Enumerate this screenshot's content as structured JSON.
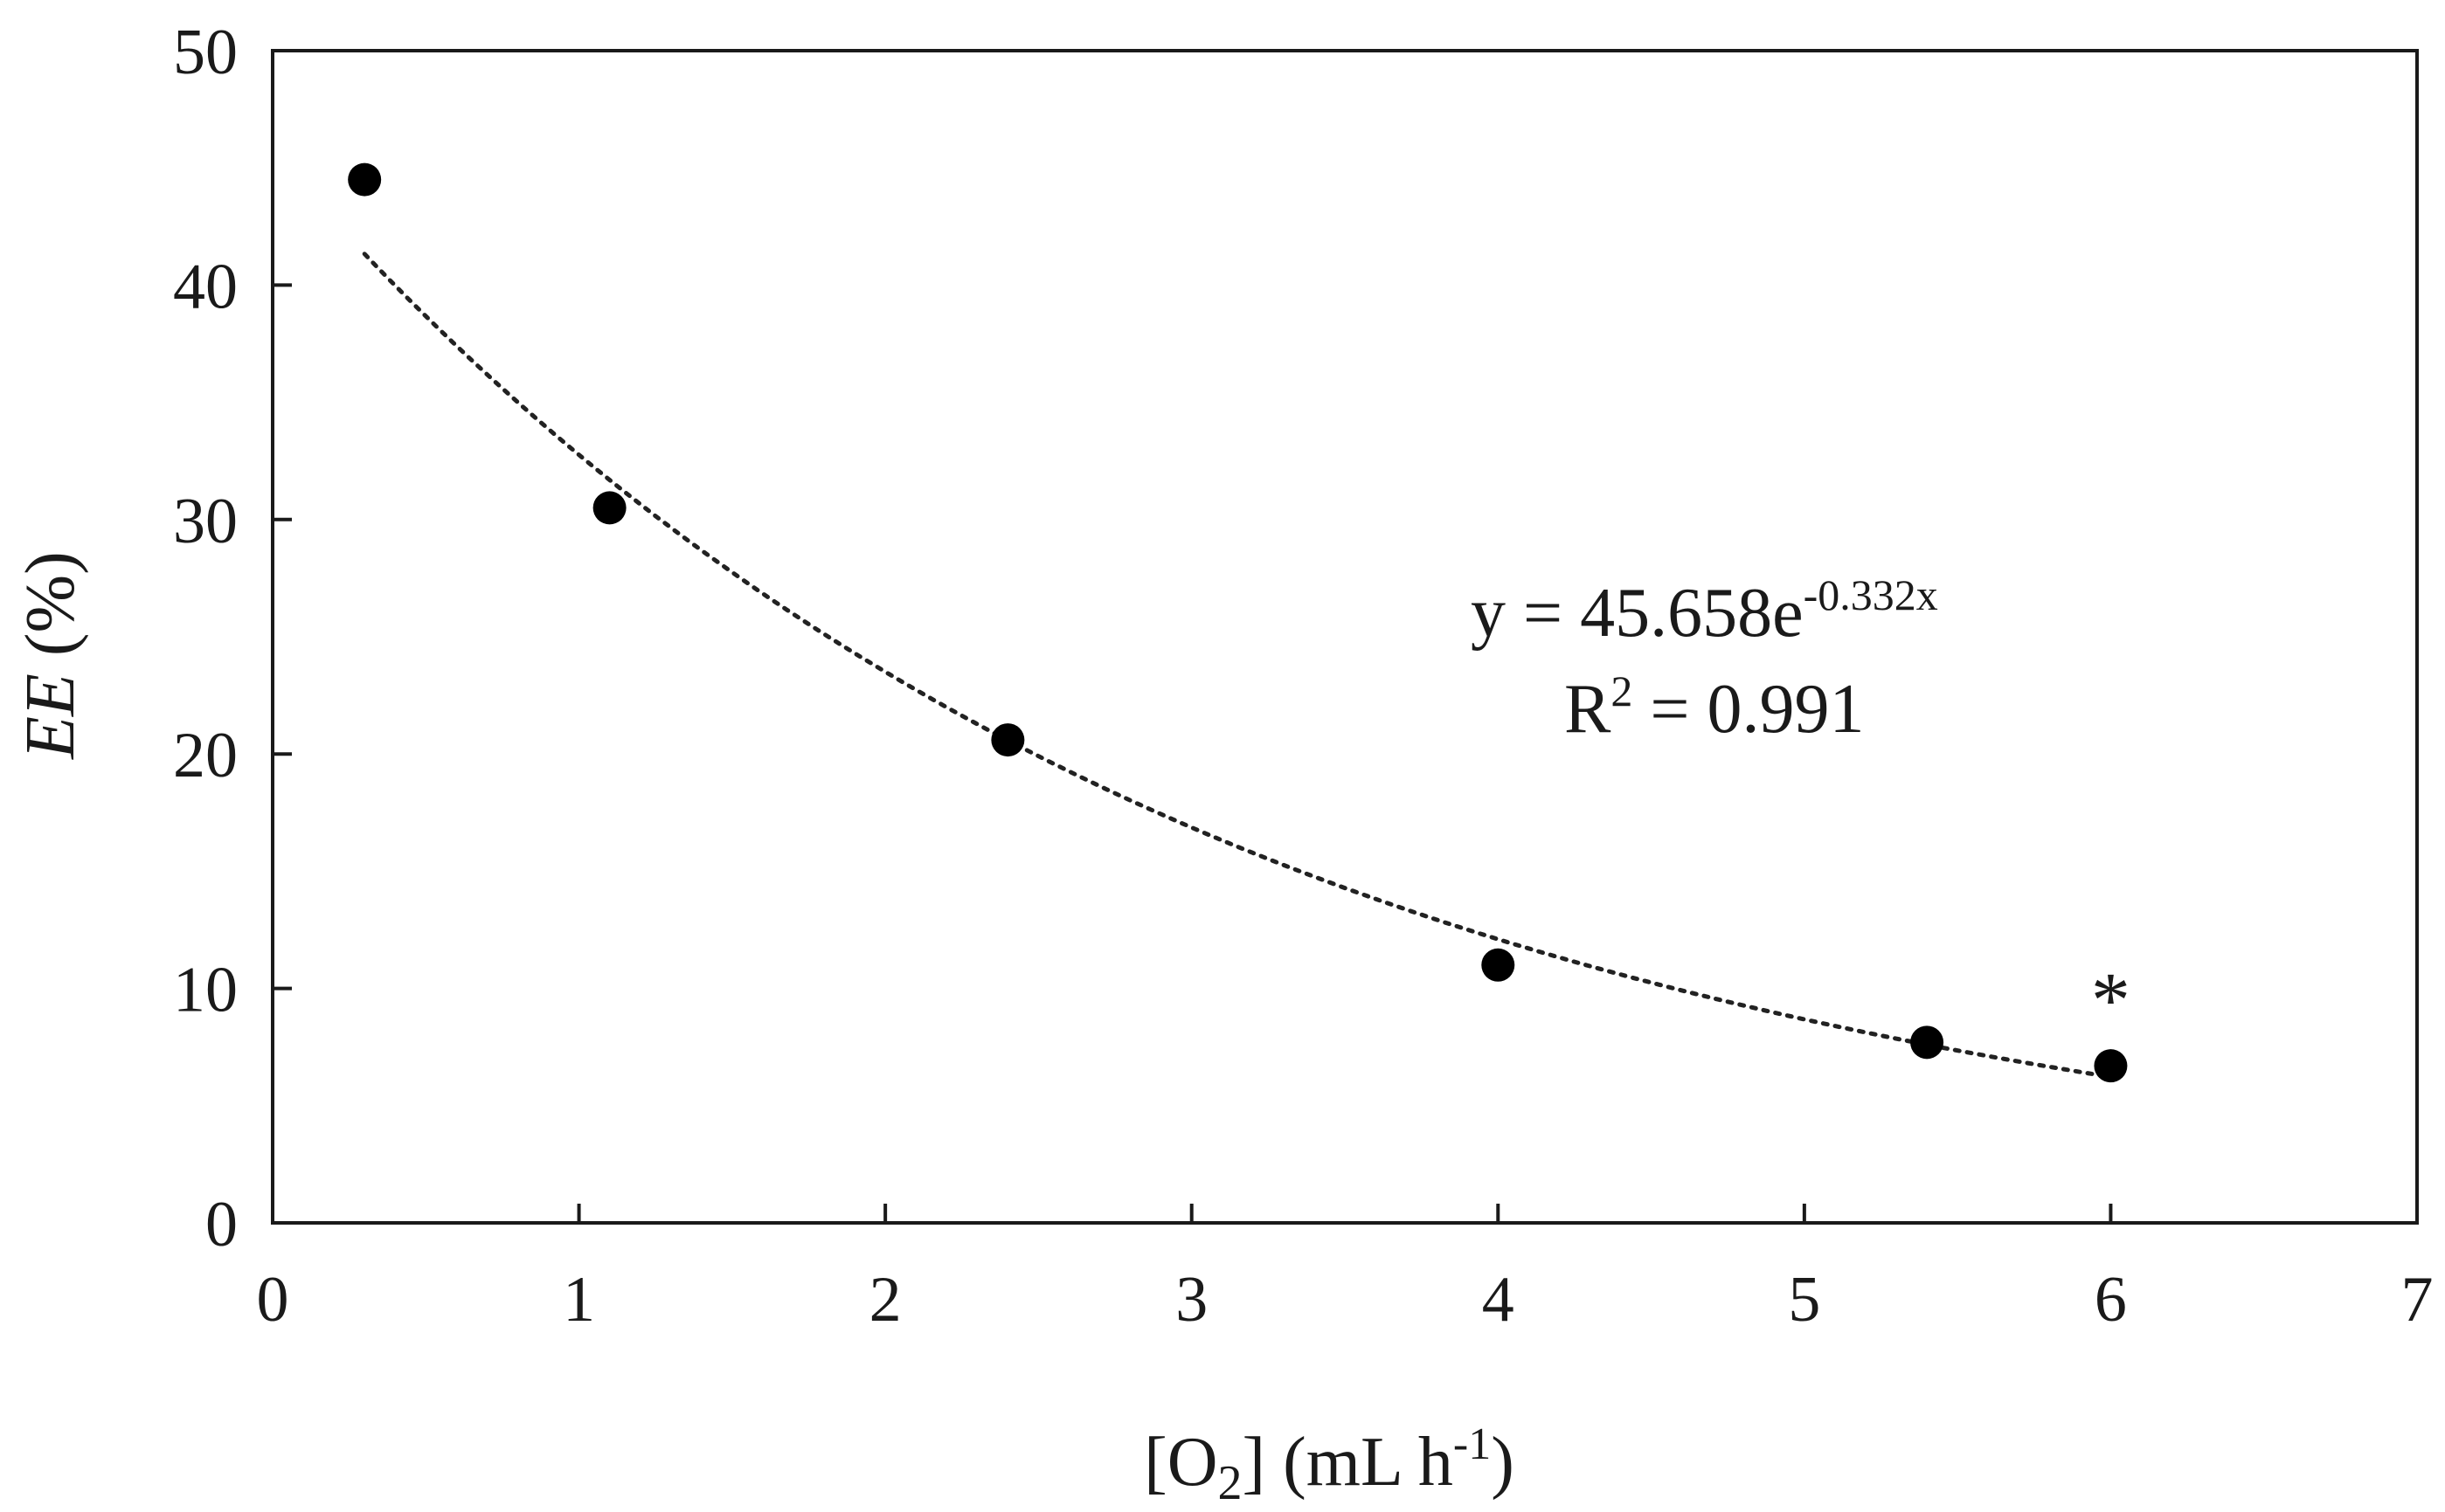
{
  "chart_data": {
    "type": "scatter",
    "xlabel": {
      "prefix": "[O",
      "sub": "2",
      "mid": "] (mL  h",
      "sup": "-1",
      "suffix": ")"
    },
    "ylabel": {
      "italic": "EE",
      "rest": " (%)"
    },
    "xlim": [
      0,
      7
    ],
    "ylim": [
      0,
      50
    ],
    "xticks": [
      0,
      1,
      2,
      3,
      4,
      5,
      6,
      7
    ],
    "yticks": [
      0,
      10,
      20,
      30,
      40,
      50
    ],
    "x_tick_labels": [
      "0",
      "1",
      "2",
      "3",
      "4",
      "5",
      "6",
      "7"
    ],
    "y_tick_labels": [
      "0",
      "10",
      "20",
      "30",
      "40",
      "50"
    ],
    "grid": false,
    "legend": "none",
    "series": [
      {
        "points": [
          {
            "x": 0.3,
            "y": 44.5
          },
          {
            "x": 1.1,
            "y": 30.5
          },
          {
            "x": 2.4,
            "y": 20.6
          },
          {
            "x": 4.0,
            "y": 11.0
          },
          {
            "x": 5.4,
            "y": 7.7
          },
          {
            "x": 6.0,
            "y": 6.7
          }
        ],
        "marker_color": "#000000"
      }
    ],
    "trendline": {
      "type": "exponential",
      "a": 45.658,
      "b": -0.332,
      "x_range": [
        0.3,
        6.0
      ],
      "style": "dotted",
      "color": "#222222"
    },
    "annotations": {
      "equation": {
        "base": "y = 45.658e",
        "exponent": "-0.332x"
      },
      "r_squared": {
        "base": "R",
        "sup": "2",
        "rest": " = 0.991"
      },
      "marker_note": {
        "text": "*",
        "x": 6.0,
        "y": 9.8
      }
    },
    "colors": {
      "axis": "#1a1a1a",
      "marker": "#000000",
      "trend": "#222222"
    }
  }
}
